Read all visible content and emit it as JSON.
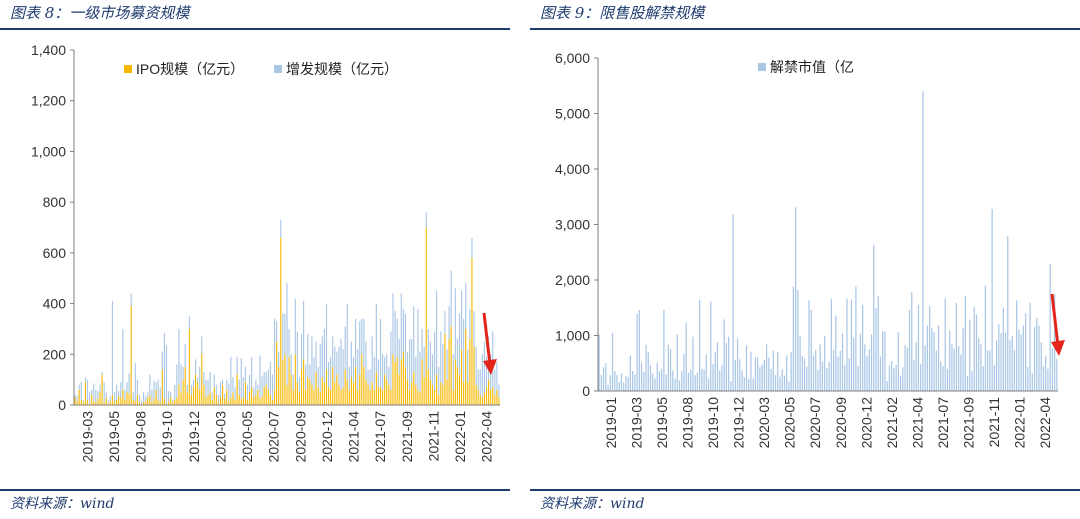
{
  "left": {
    "fig_title": "图表 8：一级市场募资规模",
    "source": "资料来源：wind"
  },
  "right": {
    "fig_title": "图表 9：限售股解禁规模",
    "source": "资料来源：wind"
  },
  "colors": {
    "ipo": "#f5b800",
    "seo": "#a9c6e6",
    "unlock": "#a9c6e6",
    "arrow": "#e3241b",
    "rule": "#1f3c6e"
  },
  "chart_data": [
    {
      "type": "bar",
      "stacked": true,
      "title": "",
      "ylim": [
        0,
        1400
      ],
      "yticks": [
        0,
        200,
        400,
        600,
        800,
        1000,
        1200,
        1400
      ],
      "ytick_labels": [
        "0",
        "200",
        "400",
        "600",
        "800",
        "1,000",
        "1,200",
        "1,400"
      ],
      "xtick_labels": [
        "2019-03",
        "2019-05",
        "2019-08",
        "2019-10",
        "2019-12",
        "2020-03",
        "2020-05",
        "2020-07",
        "2020-09",
        "2020-12",
        "2021-04",
        "2021-07",
        "2021-09",
        "2021-11",
        "2022-01",
        "2022-04"
      ],
      "legend_position": "top",
      "annotation": "red downward arrow at the latest data",
      "series": [
        {
          "name": "IPO规模（亿元）",
          "values": [
            30,
            15,
            60,
            20,
            10,
            90,
            20,
            5,
            40,
            15,
            10,
            25,
            50,
            120,
            10,
            30,
            5,
            15,
            40,
            10,
            20,
            35,
            30,
            60,
            20,
            50,
            45,
            390,
            20,
            15,
            40,
            10,
            5,
            10,
            15,
            30,
            40,
            10,
            25,
            60,
            20,
            10,
            140,
            25,
            5,
            15,
            30,
            10,
            20,
            30,
            80,
            50,
            100,
            150,
            50,
            300,
            40,
            70,
            120,
            90,
            60,
            200,
            80,
            30,
            40,
            50,
            20,
            70,
            40,
            10,
            30,
            80,
            25,
            60,
            15,
            30,
            50,
            20,
            120,
            40,
            25,
            30,
            90,
            20,
            50,
            70,
            30,
            40,
            60,
            25,
            35,
            70,
            80,
            60,
            40,
            20,
            60,
            250,
            150,
            660,
            180,
            200,
            80,
            190,
            120,
            60,
            200,
            90,
            50,
            140,
            180,
            60,
            110,
            100,
            80,
            60,
            130,
            70,
            50,
            110,
            90,
            140,
            70,
            60,
            150,
            90,
            120,
            80,
            60,
            70,
            140,
            100,
            60,
            110,
            90,
            150,
            60,
            120,
            200,
            150,
            100,
            80,
            60,
            90,
            60,
            130,
            70,
            70,
            60,
            120,
            100,
            80,
            60,
            200,
            170,
            190,
            120,
            180,
            210,
            150,
            100,
            60,
            90,
            130,
            80,
            60,
            50,
            180,
            110,
            700,
            140,
            100,
            80,
            60,
            120,
            40,
            90,
            80,
            280,
            100,
            260,
            310,
            60,
            180,
            150,
            120,
            220,
            90,
            300,
            90,
            260,
            580,
            230,
            80,
            60,
            40,
            30,
            50,
            70,
            100,
            60,
            70,
            40,
            60,
            30
          ]
        },
        {
          "name": "增发规模（亿元）",
          "values": [
            10,
            20,
            20,
            70,
            10,
            20,
            80,
            45,
            20,
            70,
            50,
            30,
            30,
            10,
            80,
            20,
            15,
            20,
            370,
            40,
            60,
            20,
            60,
            240,
            40,
            40,
            80,
            50,
            30,
            150,
            60,
            30,
            10,
            40,
            20,
            20,
            80,
            50,
            70,
            30,
            80,
            60,
            70,
            260,
            230,
            40,
            20,
            10,
            60,
            130,
            220,
            110,
            50,
            90,
            30,
            50,
            40,
            30,
            60,
            20,
            90,
            70,
            50,
            70,
            60,
            80,
            30,
            50,
            40,
            30,
            60,
            20,
            20,
            40,
            70,
            160,
            60,
            50,
            70,
            60,
            160,
            80,
            60,
            60,
            70,
            120,
            40,
            60,
            20,
            170,
            80,
            60,
            50,
            80,
            130,
            100,
            280,
            80,
            60,
            70,
            180,
            160,
            400,
            110,
            80,
            60,
            220,
            200,
            60,
            140,
            230,
            100,
            170,
            60,
            190,
            130,
            120,
            80,
            190,
            160,
            210,
            260,
            100,
            130,
            120,
            140,
            90,
            150,
            200,
            150,
            170,
            300,
            90,
            140,
            100,
            190,
            160,
            210,
            140,
            190,
            150,
            60,
            80,
            180,
            130,
            270,
            110,
            270,
            140,
            70,
            100,
            70,
            230,
            240,
            200,
            150,
            140,
            260,
            170,
            210,
            110,
            200,
            170,
            260,
            110,
            320,
            160,
            120,
            120,
            60,
            160,
            150,
            120,
            230,
            330,
            110,
            200,
            160,
            90,
            120,
            130,
            220,
            140,
            280,
            110,
            240,
            230,
            250,
            180,
            130,
            120,
            80,
            140,
            150,
            80,
            100,
            170,
            200,
            120,
            170,
            140,
            220,
            100,
            110,
            50
          ]
        }
      ]
    },
    {
      "type": "bar",
      "title": "",
      "ylim": [
        0,
        6000
      ],
      "yticks": [
        0,
        1000,
        2000,
        3000,
        4000,
        5000,
        6000
      ],
      "ytick_labels": [
        "0",
        "1,000",
        "2,000",
        "3,000",
        "4,000",
        "5,000",
        "6,000"
      ],
      "xtick_labels": [
        "2019-01",
        "2019-03",
        "2019-05",
        "2019-08",
        "2019-10",
        "2019-12",
        "2020-03",
        "2020-05",
        "2020-07",
        "2020-09",
        "2020-12",
        "2021-02",
        "2021-04",
        "2021-07",
        "2021-09",
        "2021-11",
        "2022-01",
        "2022-04"
      ],
      "legend_position": "top",
      "annotation": "red downward arrow at the latest data",
      "series": [
        {
          "name": "解禁市值（亿",
          "values": [
            1020,
            290,
            430,
            500,
            110,
            280,
            1050,
            360,
            290,
            160,
            320,
            150,
            270,
            250,
            640,
            360,
            300,
            1390,
            1460,
            510,
            340,
            830,
            700,
            470,
            320,
            230,
            510,
            360,
            400,
            1460,
            300,
            840,
            760,
            370,
            220,
            1020,
            190,
            360,
            670,
            1230,
            330,
            380,
            980,
            280,
            330,
            1640,
            400,
            390,
            660,
            230,
            1610,
            480,
            700,
            880,
            370,
            470,
            1290,
            870,
            980,
            180,
            3190,
            560,
            950,
            570,
            370,
            250,
            820,
            220,
            710,
            230,
            600,
            610,
            430,
            480,
            560,
            840,
            600,
            400,
            730,
            290,
            710,
            260,
            390,
            280,
            640,
            170,
            700,
            1880,
            3310,
            1820,
            990,
            630,
            580,
            440,
            1630,
            1460,
            640,
            740,
            380,
            840,
            530,
            990,
            410,
            520,
            1660,
            740,
            1360,
            620,
            720,
            1040,
            470,
            1670,
            590,
            1650,
            960,
            1880,
            450,
            1030,
            1550,
            840,
            630,
            750,
            1020,
            2630,
            1490,
            1710,
            620,
            1080,
            1070,
            180,
            460,
            540,
            410,
            470,
            1060,
            280,
            430,
            830,
            780,
            1460,
            1780,
            560,
            880,
            1550,
            480,
            5400,
            830,
            1180,
            1530,
            1130,
            1060,
            730,
            1180,
            530,
            450,
            1670,
            400,
            1090,
            840,
            760,
            1590,
            810,
            660,
            1130,
            1720,
            270,
            1290,
            360,
            1510,
            1380,
            950,
            850,
            450,
            1900,
            730,
            730,
            3280,
            470,
            910,
            1200,
            1040,
            1500,
            1050,
            2790,
            910,
            990,
            740,
            1630,
            1110,
            1020,
            1180,
            1400,
            430,
            1590,
            320,
            1150,
            1320,
            1180,
            880,
            450,
            640,
            400,
            2290,
            770,
            1740,
            580
          ]
        }
      ]
    }
  ]
}
